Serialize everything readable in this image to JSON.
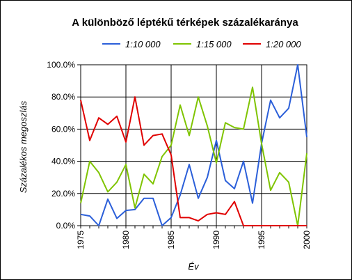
{
  "chart_data": {
    "type": "line",
    "title": "A különböző léptékű térképek százalékaránya",
    "xlabel": "Év",
    "ylabel": "Százalékos megoszlás",
    "xlim": [
      1975,
      2000
    ],
    "ylim": [
      0,
      100
    ],
    "x_ticks": [
      "1975",
      "1980",
      "1985",
      "1990",
      "1995",
      "2000"
    ],
    "y_ticks": [
      "0.0%",
      "20.0%",
      "40.0%",
      "60.0%",
      "80.0%",
      "100.0%"
    ],
    "grid": "horizontal and vertical",
    "legend_position": "top",
    "x": [
      1975,
      1976,
      1977,
      1978,
      1979,
      1980,
      1981,
      1982,
      1983,
      1984,
      1985,
      1986,
      1987,
      1988,
      1989,
      1990,
      1991,
      1992,
      1993,
      1994,
      1995,
      1996,
      1997,
      1998,
      1999,
      2000
    ],
    "series": [
      {
        "name": "1:10 000",
        "color": "#2b5fd9",
        "values": [
          7,
          6,
          0,
          16.5,
          4.5,
          9.5,
          10,
          17,
          17,
          0,
          5,
          19,
          38,
          17,
          30,
          53,
          28,
          23,
          40,
          14,
          51,
          78,
          67,
          73,
          100,
          55
        ]
      },
      {
        "name": "1:15 000",
        "color": "#7fc400",
        "values": [
          14,
          40,
          33,
          21,
          27,
          38,
          11,
          32,
          26,
          43,
          50,
          75,
          56,
          80,
          62,
          39,
          64,
          61,
          60,
          86,
          51,
          22,
          33,
          27,
          0,
          45
        ]
      },
      {
        "name": "1:20 000",
        "color": "#e00000",
        "values": [
          78,
          53,
          67,
          63,
          68,
          52,
          80,
          50,
          56,
          57,
          44,
          5,
          5,
          3,
          7,
          8,
          7,
          15,
          0,
          0,
          0,
          0,
          0,
          0,
          0,
          0
        ]
      }
    ]
  }
}
